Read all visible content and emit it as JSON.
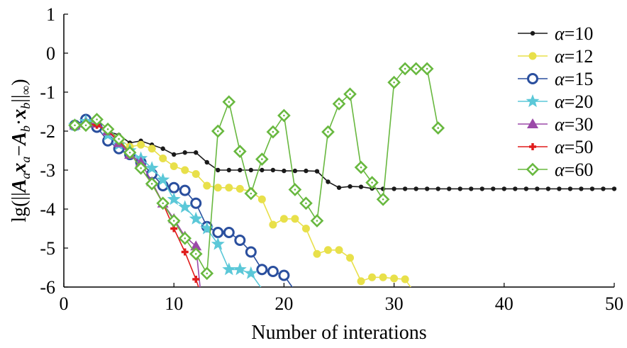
{
  "chart_data": {
    "type": "line",
    "xlabel": "Number of interations",
    "ylabel": "lg(||Aₐxₐ−A_bx_b||∞)",
    "ylabel_parts": [
      "lg(||",
      "A",
      "a",
      "x",
      "a",
      "−",
      "A",
      "b",
      "·",
      "x",
      "b",
      "||",
      "∞",
      ")"
    ],
    "xlim": [
      0,
      50
    ],
    "ylim": [
      -6,
      1
    ],
    "xticks": [
      0,
      10,
      20,
      30,
      40,
      50
    ],
    "yticks": [
      1,
      0,
      -1,
      -2,
      -3,
      -4,
      -5,
      -6
    ],
    "ytick_labels": [
      "1",
      "0",
      "-1",
      "-2",
      "-3",
      "-4",
      "-5",
      "-6"
    ],
    "grid": false,
    "legend_position": "top-right",
    "series": [
      {
        "name": "α=10",
        "greek": "α",
        "value_label": "=10",
        "color": "#1a1a1a",
        "marker": "dot",
        "x": [
          1,
          2,
          3,
          4,
          5,
          6,
          7,
          8,
          9,
          10,
          11,
          12,
          13,
          14,
          15,
          16,
          17,
          18,
          19,
          20,
          21,
          22,
          23,
          24,
          25,
          26,
          27,
          28,
          29,
          30,
          31,
          32,
          33,
          34,
          35,
          36,
          37,
          38,
          39,
          40,
          41,
          42,
          43,
          44,
          45,
          46,
          47,
          48,
          49,
          50
        ],
        "y": [
          -1.85,
          -1.85,
          -1.9,
          -2.0,
          -2.1,
          -2.3,
          -2.25,
          -2.35,
          -2.45,
          -2.6,
          -2.55,
          -2.55,
          -2.8,
          -3.0,
          -3.0,
          -3.0,
          -3.0,
          -3.0,
          -3.0,
          -3.02,
          -3.02,
          -3.02,
          -3.03,
          -3.3,
          -3.45,
          -3.42,
          -3.43,
          -3.47,
          -3.48,
          -3.48,
          -3.48,
          -3.48,
          -3.48,
          -3.48,
          -3.48,
          -3.48,
          -3.48,
          -3.48,
          -3.48,
          -3.48,
          -3.48,
          -3.48,
          -3.48,
          -3.48,
          -3.48,
          -3.48,
          -3.48,
          -3.48,
          -3.48,
          -3.48
        ]
      },
      {
        "name": "α=12",
        "greek": "α",
        "value_label": "=12",
        "color": "#e8e04a",
        "marker": "circle-filled",
        "x": [
          1,
          2,
          3,
          4,
          5,
          6,
          7,
          8,
          9,
          10,
          11,
          12,
          13,
          14,
          15,
          16,
          17,
          18,
          19,
          20,
          21,
          22,
          23,
          24,
          25,
          26,
          27,
          28,
          29,
          30,
          31,
          32
        ],
        "y": [
          -1.85,
          -1.7,
          -1.9,
          -2.0,
          -2.2,
          -2.4,
          -2.35,
          -2.45,
          -2.7,
          -2.9,
          -3.0,
          -3.1,
          -3.4,
          -3.45,
          -3.45,
          -3.48,
          -3.55,
          -3.75,
          -4.4,
          -4.25,
          -4.25,
          -4.5,
          -5.15,
          -5.05,
          -5.05,
          -5.25,
          -5.85,
          -5.75,
          -5.75,
          -5.78,
          -5.8,
          -6.2
        ]
      },
      {
        "name": "α=15",
        "greek": "α",
        "value_label": "=15",
        "color": "#2a4f9e",
        "marker": "circle-open",
        "x": [
          1,
          2,
          3,
          4,
          5,
          6,
          7,
          8,
          9,
          10,
          11,
          12,
          13,
          14,
          15,
          16,
          17,
          18,
          19,
          20,
          21
        ],
        "y": [
          -1.85,
          -1.7,
          -1.9,
          -2.25,
          -2.45,
          -2.6,
          -2.8,
          -3.1,
          -3.4,
          -3.45,
          -3.52,
          -3.85,
          -4.45,
          -4.6,
          -4.6,
          -4.8,
          -5.1,
          -5.55,
          -5.6,
          -5.7,
          -6.1
        ]
      },
      {
        "name": "α=20",
        "greek": "α",
        "value_label": "=20",
        "color": "#5bc8d8",
        "marker": "star",
        "x": [
          1,
          2,
          3,
          4,
          5,
          6,
          7,
          8,
          9,
          10,
          11,
          12,
          13,
          14,
          15,
          16,
          17,
          18
        ],
        "y": [
          -1.85,
          -1.75,
          -1.75,
          -2.1,
          -2.35,
          -2.5,
          -2.7,
          -2.95,
          -3.25,
          -3.75,
          -3.95,
          -4.25,
          -4.5,
          -4.9,
          -5.55,
          -5.55,
          -5.65,
          -6.05
        ]
      },
      {
        "name": "α=30",
        "greek": "α",
        "value_label": "=30",
        "color": "#9b49a8",
        "marker": "triangle",
        "x": [
          1,
          2,
          3,
          4,
          5,
          6,
          7,
          8,
          9,
          10,
          11,
          12,
          12.4
        ],
        "y": [
          -1.85,
          -1.8,
          -1.8,
          -2.0,
          -2.3,
          -2.6,
          -2.8,
          -3.3,
          -3.85,
          -4.25,
          -4.7,
          -4.95,
          -6.05
        ]
      },
      {
        "name": "α=50",
        "greek": "α",
        "value_label": "=50",
        "color": "#e01c1c",
        "marker": "plus",
        "x": [
          1,
          2,
          3,
          4,
          5,
          6,
          7,
          8,
          9,
          10,
          11,
          12,
          12.3
        ],
        "y": [
          -1.85,
          -1.8,
          -1.85,
          -2.0,
          -2.25,
          -2.55,
          -2.95,
          -3.35,
          -3.85,
          -4.5,
          -5.1,
          -5.8,
          -6.05
        ]
      },
      {
        "name": "α=60",
        "greek": "α",
        "value_label": "=60",
        "color": "#68b83f",
        "marker": "diamond",
        "x": [
          1,
          2,
          3,
          4,
          5,
          6,
          7,
          8,
          9,
          10,
          11,
          12,
          13,
          14,
          15,
          16,
          17,
          18,
          19,
          20,
          21,
          22,
          23,
          24,
          25,
          26,
          27,
          28,
          29,
          30,
          31,
          32,
          33,
          34
        ],
        "y": [
          -1.85,
          -1.85,
          -1.7,
          -1.95,
          -2.2,
          -2.55,
          -2.95,
          -3.35,
          -3.85,
          -4.3,
          -4.75,
          -5.15,
          -5.65,
          -2.0,
          -1.25,
          -2.52,
          -3.6,
          -2.72,
          -2.02,
          -1.6,
          -3.5,
          -3.85,
          -4.3,
          -2.02,
          -1.3,
          -1.05,
          -2.93,
          -3.32,
          -3.75,
          -0.75,
          -0.4,
          -0.4,
          -0.4,
          -1.92
        ]
      }
    ]
  }
}
